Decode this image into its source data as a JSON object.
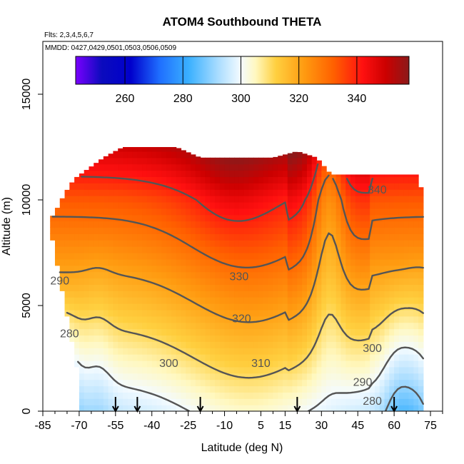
{
  "chart_data": {
    "type": "heatmap",
    "title": "ATOM4 Southbound THETA",
    "subtitle_flights": "Flts: 2,3,4,5,6,7",
    "subtitle_dates": "MMDD: 0427,0429,0501,0503,0506,0509",
    "xlabel": "Latitude (deg N)",
    "ylabel": "Altitude (m)",
    "xlim": [
      -85,
      80
    ],
    "ylim": [
      0,
      17500
    ],
    "x_ticks": [
      -85,
      -70,
      -55,
      -40,
      -25,
      -10,
      5,
      15,
      30,
      45,
      60,
      75
    ],
    "x_tick_labels": [
      "-85",
      "-70",
      "-55",
      "-40",
      "-25",
      "-10",
      "5",
      "15",
      "30",
      "45",
      "60",
      "75"
    ],
    "y_ticks": [
      0,
      5000,
      10000,
      15000
    ],
    "y_tick_labels": [
      "0",
      "5000",
      "10000",
      "15000"
    ],
    "colorbar": {
      "range": [
        243,
        358
      ],
      "ticks": [
        260,
        280,
        300,
        320,
        340
      ],
      "tick_labels": [
        "260",
        "280",
        "300",
        "320",
        "340"
      ],
      "stops": [
        [
          243,
          "#7a00ff"
        ],
        [
          252,
          "#0b0bbd"
        ],
        [
          262,
          "#0000cc"
        ],
        [
          272,
          "#1f6fff"
        ],
        [
          282,
          "#3ab0ff"
        ],
        [
          292,
          "#a8dcff"
        ],
        [
          300,
          "#f4fbff"
        ],
        [
          305,
          "#fff8c0"
        ],
        [
          312,
          "#ffd040"
        ],
        [
          322,
          "#ff9a10"
        ],
        [
          332,
          "#ff6000"
        ],
        [
          342,
          "#ff1010"
        ],
        [
          350,
          "#cc0000"
        ],
        [
          358,
          "#8b1a1a"
        ]
      ]
    },
    "contour_levels": [
      {
        "value": 280,
        "label": "280"
      },
      {
        "value": 290,
        "label": "290"
      },
      {
        "value": 300,
        "label": "300"
      },
      {
        "value": 310,
        "label": "310"
      },
      {
        "value": 320,
        "label": "320"
      },
      {
        "value": 330,
        "label": "330"
      },
      {
        "value": 340,
        "label": "340"
      }
    ],
    "contour_label_positions": [
      {
        "label": "290",
        "x": -78,
        "y": 6000
      },
      {
        "label": "280",
        "x": -74,
        "y": 3500
      },
      {
        "label": "300",
        "x": -33,
        "y": 2100
      },
      {
        "label": "310",
        "x": 5,
        "y": 2100
      },
      {
        "label": "320",
        "x": -3,
        "y": 4200
      },
      {
        "label": "330",
        "x": -4,
        "y": 6200
      },
      {
        "label": "340",
        "x": 53,
        "y": 10300
      },
      {
        "label": "300",
        "x": 51,
        "y": 2800
      },
      {
        "label": "290",
        "x": 47,
        "y": 1200
      },
      {
        "label": "280",
        "x": 51,
        "y": 300
      }
    ],
    "profile_markers_lat": [
      -55,
      -46,
      -20,
      20,
      60
    ]
  }
}
